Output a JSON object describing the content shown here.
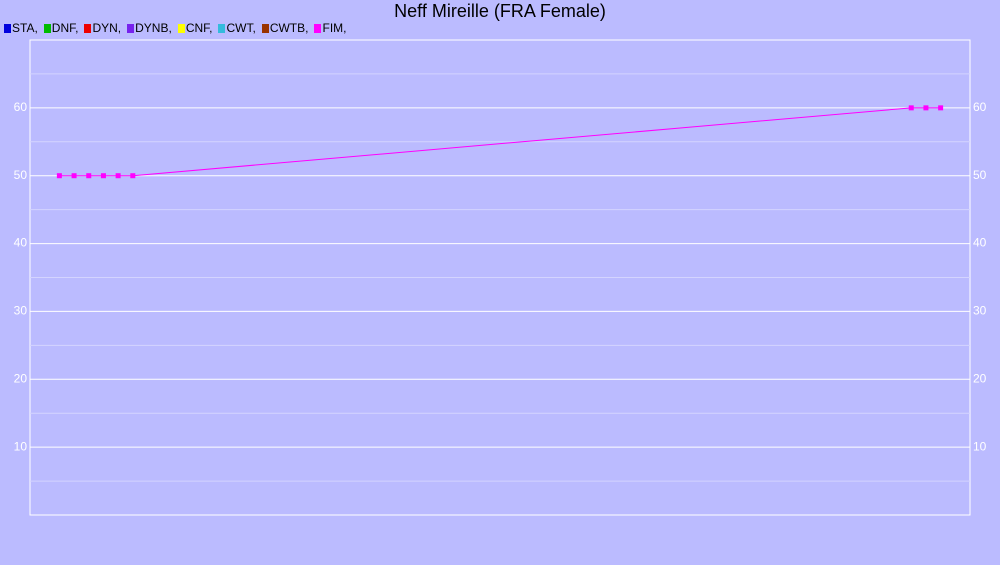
{
  "chart_data": {
    "type": "line",
    "title": "Neff Mireille (FRA Female)",
    "x": [
      2,
      3,
      4,
      5,
      6,
      7,
      60,
      61,
      62
    ],
    "xlim": [
      0,
      64
    ],
    "ylim": [
      0,
      70
    ],
    "yticks": [
      10,
      20,
      30,
      40,
      50,
      60
    ],
    "minor_yticks": [
      5,
      15,
      25,
      35,
      45,
      55,
      65
    ],
    "grid": true,
    "series": [
      {
        "name": "STA,",
        "color": "#0000dd",
        "values": [
          null,
          null,
          null,
          null,
          null,
          null,
          null,
          null,
          null
        ]
      },
      {
        "name": "DNF,",
        "color": "#00bb00",
        "values": [
          null,
          null,
          null,
          null,
          null,
          null,
          null,
          null,
          null
        ]
      },
      {
        "name": "DYN,",
        "color": "#ee0000",
        "values": [
          null,
          null,
          null,
          null,
          null,
          null,
          null,
          null,
          null
        ]
      },
      {
        "name": "DYNB,",
        "color": "#7722ee",
        "values": [
          null,
          null,
          null,
          null,
          null,
          null,
          null,
          null,
          null
        ]
      },
      {
        "name": "CNF,",
        "color": "#ffff00",
        "values": [
          null,
          null,
          null,
          null,
          null,
          null,
          null,
          null,
          null
        ]
      },
      {
        "name": "CWT,",
        "color": "#33bbdd",
        "values": [
          null,
          null,
          null,
          null,
          null,
          null,
          null,
          null,
          null
        ]
      },
      {
        "name": "CWTB,",
        "color": "#993300",
        "values": [
          null,
          null,
          null,
          null,
          null,
          null,
          null,
          null,
          null
        ]
      },
      {
        "name": "FIM,",
        "color": "#ff00ff",
        "values": [
          50,
          50,
          50,
          50,
          50,
          50,
          60,
          60,
          60
        ]
      }
    ]
  }
}
